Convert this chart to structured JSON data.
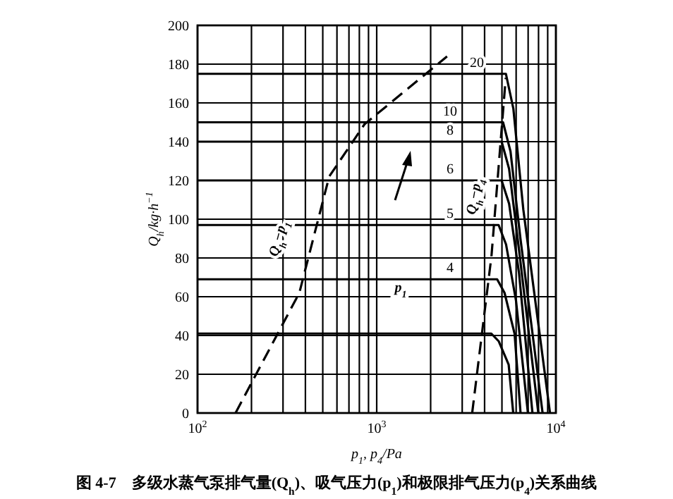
{
  "chart_data": {
    "type": "line",
    "title": "图 4-7　多级水蒸气泵排气量(Q$_{h}$)、吸气压力(p$_{1}$)和极限排气压力(p$_{4}$)关系曲线",
    "xlabel": "p$_{1}$, p$_{4}$/Pa",
    "ylabel": "Q$_{h}$/kg·h$^{−1}$",
    "log": "x",
    "xlim": [
      100,
      10000
    ],
    "ylim": [
      0,
      200
    ],
    "xticks": [
      {
        "value": 100,
        "label": "10$^{2}$"
      },
      {
        "value": 200,
        "label": null
      },
      {
        "value": 300,
        "label": null
      },
      {
        "value": 400,
        "label": null
      },
      {
        "value": 500,
        "label": null
      },
      {
        "value": 600,
        "label": null
      },
      {
        "value": 700,
        "label": null
      },
      {
        "value": 800,
        "label": null
      },
      {
        "value": 900,
        "label": null
      },
      {
        "value": 1000,
        "label": "10$^{3}$"
      },
      {
        "value": 2000,
        "label": null
      },
      {
        "value": 3000,
        "label": null
      },
      {
        "value": 4000,
        "label": null
      },
      {
        "value": 5000,
        "label": null
      },
      {
        "value": 6000,
        "label": null
      },
      {
        "value": 7000,
        "label": null
      },
      {
        "value": 8000,
        "label": null
      },
      {
        "value": 9000,
        "label": null
      },
      {
        "value": 10000,
        "label": "10$^{4}$"
      }
    ],
    "yticks": [
      0,
      20,
      40,
      60,
      80,
      100,
      120,
      140,
      160,
      180,
      200
    ],
    "grid": true,
    "marker": "none",
    "series": [
      {
        "name": "20",
        "color": "#000000",
        "line_style": "solid",
        "x": [
          100,
          5260,
          5790,
          6580,
          9270
        ],
        "values": [
          175,
          175,
          157,
          105,
          0
        ]
      },
      {
        "name": "10",
        "color": "#000000",
        "line_style": "solid",
        "x": [
          100,
          5070,
          5580,
          6340,
          8430
        ],
        "values": [
          150,
          150,
          135,
          90,
          0
        ]
      },
      {
        "name": "8",
        "color": "#000000",
        "line_style": "solid",
        "x": [
          100,
          4980,
          5480,
          6230,
          7980
        ],
        "values": [
          140,
          140,
          126,
          84,
          0
        ]
      },
      {
        "name": "6",
        "color": "#000000",
        "line_style": "solid",
        "x": [
          100,
          4980,
          5480,
          6230,
          7400
        ],
        "values": [
          120,
          120,
          108,
          72,
          0
        ]
      },
      {
        "name": "5",
        "color": "#000000",
        "line_style": "solid",
        "x": [
          100,
          4790,
          5270,
          5990,
          6980
        ],
        "values": [
          97,
          97,
          87,
          58,
          0
        ]
      },
      {
        "name": "4",
        "color": "#000000",
        "line_style": "solid",
        "x": [
          100,
          4700,
          5170,
          5880,
          6350
        ],
        "values": [
          69,
          69,
          62,
          41,
          0
        ]
      },
      {
        "color": "#000000",
        "line_style": "solid",
        "x": [
          100,
          4360,
          4800,
          5450,
          5780
        ],
        "values": [
          41,
          41,
          37,
          25,
          0
        ]
      },
      {
        "color": "#000000",
        "line_style": "dashed",
        "x": [
          163,
          370,
          543,
          855,
          2470
        ],
        "values": [
          0,
          62,
          122,
          149,
          184
        ]
      },
      {
        "color": "#000000",
        "line_style": "dashed",
        "x": [
          3410,
          4370,
          5250
        ],
        "values": [
          0,
          81,
          173
        ]
      }
    ],
    "annotations": [
      "Q$_{h}$−p$_{1}$",
      "Q$_{h}$−p$_{4}$",
      "p$_{1}$"
    ]
  }
}
